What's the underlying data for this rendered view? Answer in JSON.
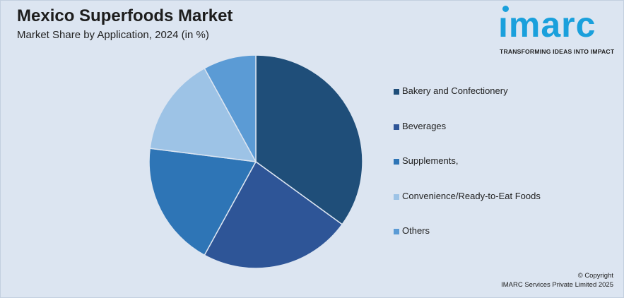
{
  "header": {
    "title": "Mexico Superfoods Market",
    "subtitle": "Market Share by Application, 2024 (in %)"
  },
  "logo": {
    "word": "ımarc",
    "tagline": "TRANSFORMING IDEAS INTO IMPACT",
    "color": "#1aa0dc"
  },
  "footer": {
    "copyright_line1": "© Copyright",
    "copyright_line2": "IMARC Services Private Limited 2025"
  },
  "chart_data": {
    "type": "pie",
    "title": "Mexico Superfoods Market",
    "subtitle": "Market Share by Application, 2024 (in %)",
    "legend_position": "right",
    "categories": [
      "Bakery and Confectionery",
      "Beverages",
      "Supplements,",
      "Convenience/Ready-to-Eat Foods",
      "Others"
    ],
    "values": [
      35,
      23,
      19,
      15,
      8
    ],
    "colors": [
      "#1f4e79",
      "#2e5597",
      "#2e75b6",
      "#9dc3e6",
      "#5b9bd5"
    ]
  }
}
